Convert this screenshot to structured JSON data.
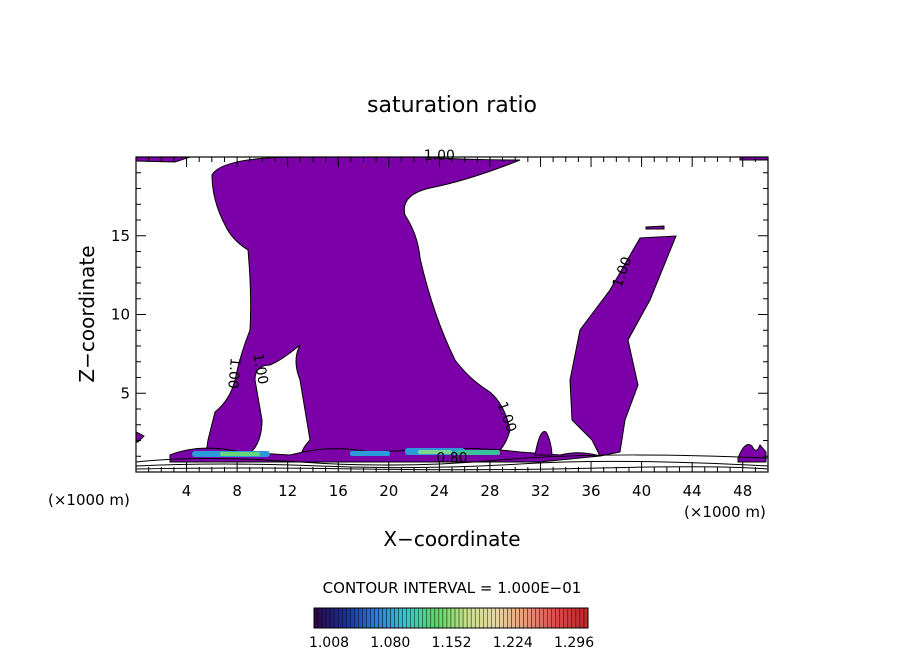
{
  "chart_data": {
    "type": "contour",
    "title": "saturation ratio",
    "xlabel": "X−coordinate",
    "ylabel": "Z−coordinate",
    "x_unit_left": "(×1000 m)",
    "x_unit_right": "(×1000 m)",
    "xlim": [
      0,
      50
    ],
    "ylim": [
      0,
      20
    ],
    "x_ticks": [
      4,
      8,
      12,
      16,
      20,
      24,
      28,
      32,
      36,
      40,
      44,
      48
    ],
    "y_ticks": [
      5,
      10,
      15
    ],
    "contour_labels": [
      {
        "text": "1.00",
        "x": 24.0,
        "y": 19.8,
        "angle": 0
      },
      {
        "text": "1.00",
        "x": 38.8,
        "y": 12.6,
        "angle": -70
      },
      {
        "text": "1.00",
        "x": 9.5,
        "y": 6.5,
        "angle": 80
      },
      {
        "text": "1.00",
        "x": 7.4,
        "y": 6.3,
        "angle": 95
      },
      {
        "text": "1.00",
        "x": 29.0,
        "y": 3.4,
        "angle": 70
      },
      {
        "text": "0.80",
        "x": 25.0,
        "y": 0.6,
        "angle": 0
      }
    ],
    "contour_interval_text": "CONTOUR INTERVAL = 1.000E−01",
    "colorbar": {
      "min": 1.008,
      "max": 1.33,
      "tick_labels": [
        "1.008",
        "1.080",
        "1.152",
        "1.224",
        "1.296"
      ],
      "colors": [
        "#2a0a4a",
        "#1a2f9c",
        "#2b7de0",
        "#35c8c8",
        "#5bd66a",
        "#c8e08a",
        "#e7d6a4",
        "#e69a7c",
        "#d94a48",
        "#c02a2a"
      ]
    },
    "fill_color": "#7b00a8",
    "grid": false,
    "legend": "none"
  }
}
